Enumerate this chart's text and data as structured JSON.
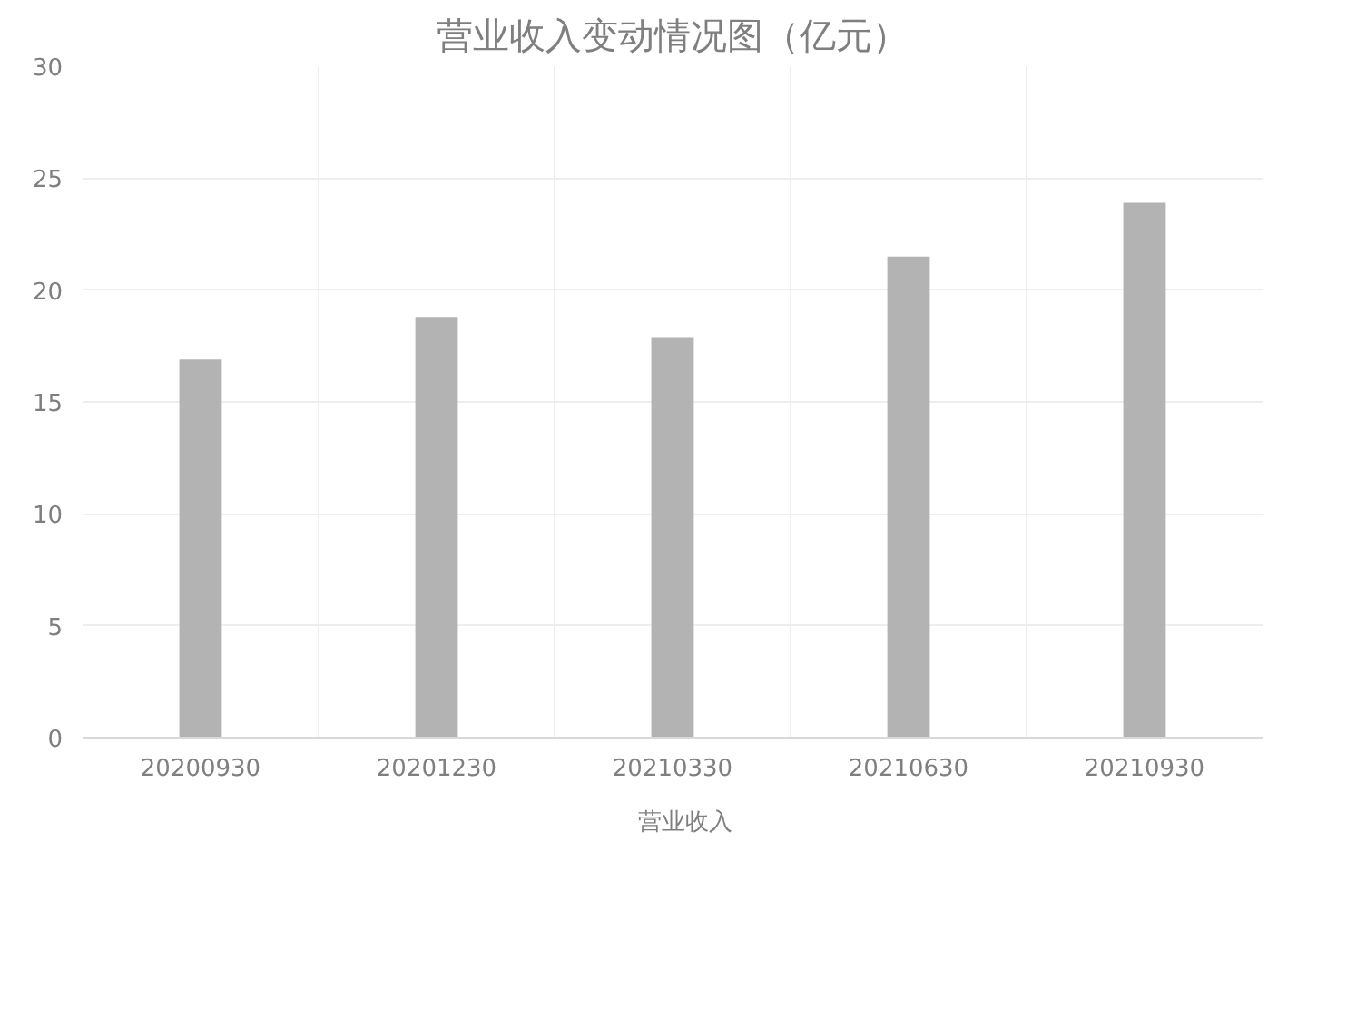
{
  "chart_data": {
    "type": "bar",
    "title": "营业收入变动情况图（亿元）",
    "categories": [
      "20200930",
      "20201230",
      "20210330",
      "20210630",
      "20210930"
    ],
    "series": [
      {
        "name": "营业收入",
        "color": "#b3b3b3",
        "values": [
          16.9,
          18.8,
          17.9,
          21.5,
          23.9
        ]
      }
    ],
    "ylim": [
      0,
      30
    ],
    "yticks": [
      0,
      5,
      10,
      15,
      20,
      25,
      30
    ],
    "grid": true,
    "legend": "bottom"
  }
}
